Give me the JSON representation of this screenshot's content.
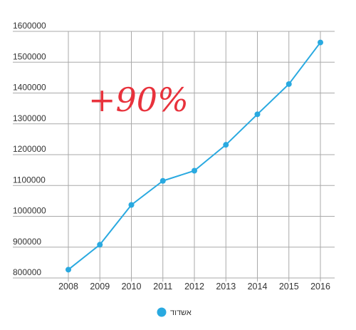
{
  "chart_data": {
    "type": "line",
    "categories": [
      "2008",
      "2009",
      "2010",
      "2011",
      "2012",
      "2013",
      "2014",
      "2015",
      "2016"
    ],
    "series": [
      {
        "name": "אשדוד",
        "values": [
          827000,
          908000,
          1037000,
          1115000,
          1148000,
          1232000,
          1331000,
          1429000,
          1564000
        ]
      }
    ],
    "ylim": [
      800000,
      1600000
    ],
    "yticks": [
      "1600000",
      "1500000",
      "1400000",
      "1300000",
      "1200000",
      "1100000",
      "1000000",
      "900000",
      "800000"
    ],
    "ytick_values": [
      1600000,
      1500000,
      1400000,
      1300000,
      1200000,
      1100000,
      1000000,
      900000,
      800000
    ],
    "grid": true,
    "legend_position": "bottom",
    "annotation": "+90%",
    "colors": {
      "series": "#29a9e0",
      "grid": "#a9a9a9",
      "annotation": "#e8323c"
    }
  }
}
